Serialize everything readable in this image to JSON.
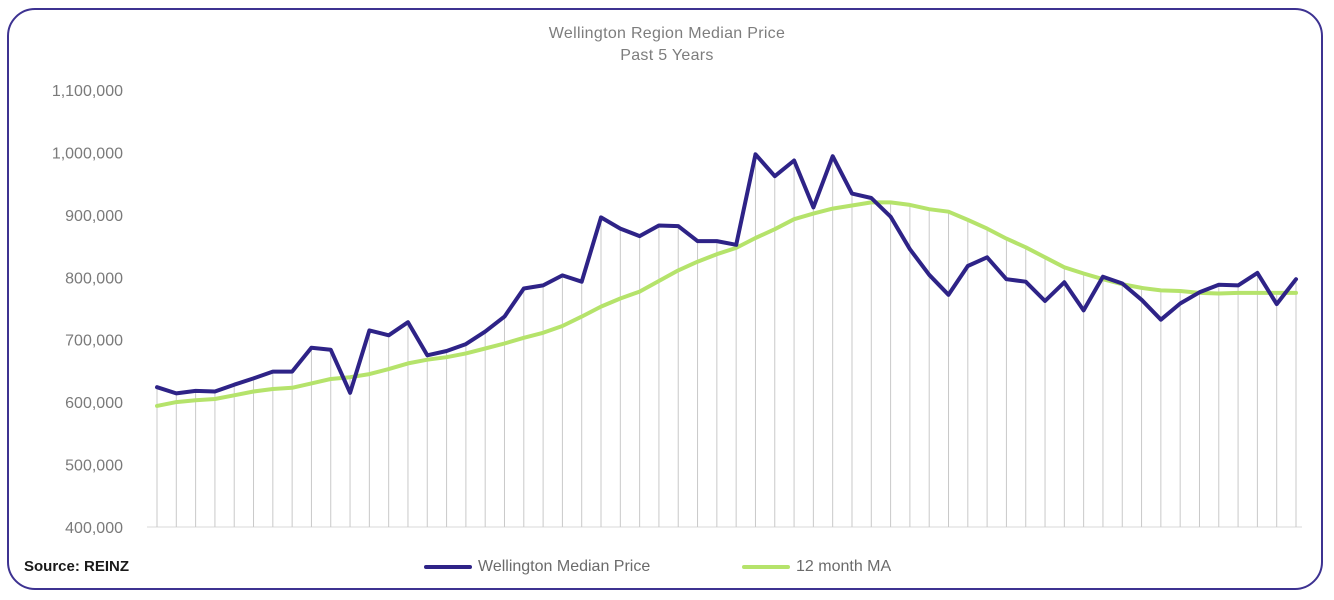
{
  "chart_data": {
    "type": "line",
    "title": "Wellington Region Median Price",
    "subtitle": "Past 5 Years",
    "source": "Source: REINZ",
    "ylim": [
      400000,
      1100000
    ],
    "yticks": [
      400000,
      500000,
      600000,
      700000,
      800000,
      900000,
      1000000,
      1100000
    ],
    "ytick_labels": [
      "400,000",
      "500,000",
      "600,000",
      "700,000",
      "800,000",
      "900,000",
      "1,000,000",
      "1,100,000"
    ],
    "xlabel": "",
    "ylabel": "",
    "grid": "vertical drop lines",
    "legend_position": "bottom",
    "series": [
      {
        "name": "Wellington Median Price",
        "color": "#2e2387",
        "values": [
          624000,
          614000,
          618000,
          617000,
          628000,
          638000,
          649000,
          649000,
          687000,
          684000,
          615000,
          715000,
          707000,
          728000,
          675000,
          682000,
          693000,
          713000,
          737000,
          782000,
          787000,
          803000,
          793000,
          896000,
          878000,
          866000,
          883000,
          882000,
          858000,
          858000,
          852000,
          997000,
          962000,
          987000,
          912000,
          994000,
          934000,
          927000,
          897000,
          845000,
          804000,
          772000,
          818000,
          832000,
          797000,
          793000,
          762000,
          792000,
          747000,
          801000,
          790000,
          764000,
          732000,
          758000,
          776000,
          788000,
          787000,
          807000,
          757000,
          797000
        ]
      },
      {
        "name": "12 month MA",
        "color": "#b5e36b",
        "values": [
          594000,
          600000,
          603000,
          605000,
          611000,
          617000,
          621000,
          623000,
          630000,
          637000,
          640000,
          645000,
          653000,
          662000,
          668000,
          672000,
          678000,
          686000,
          694000,
          703000,
          711000,
          722000,
          737000,
          753000,
          766000,
          777000,
          794000,
          811000,
          825000,
          837000,
          847000,
          863000,
          877000,
          893000,
          902000,
          910000,
          915000,
          920000,
          920000,
          916000,
          909000,
          905000,
          892000,
          878000,
          862000,
          848000,
          832000,
          816000,
          806000,
          797000,
          789000,
          783000,
          779000,
          778000,
          775000,
          774000,
          775000,
          775000,
          775000,
          775000
        ]
      }
    ]
  }
}
